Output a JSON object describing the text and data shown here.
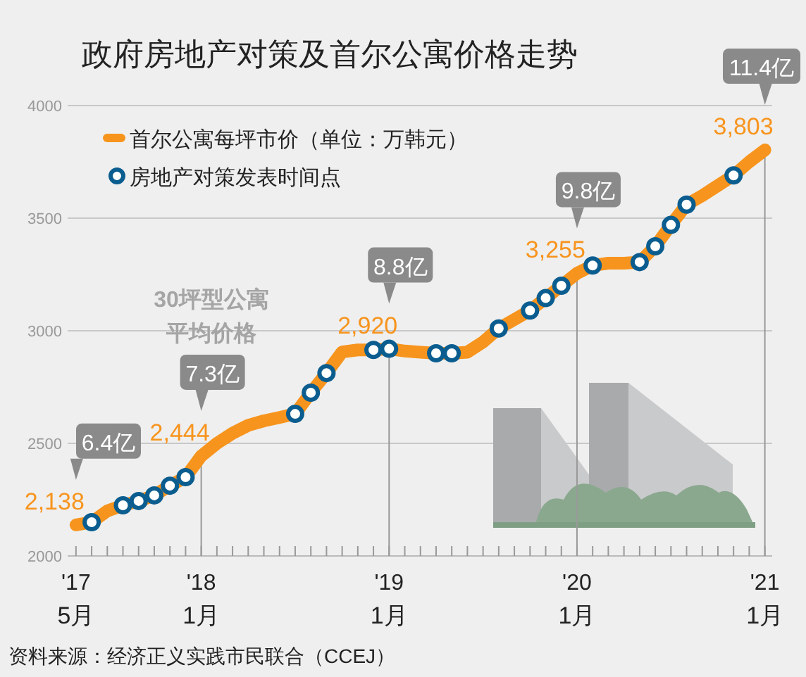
{
  "chart_data": {
    "type": "line",
    "title": "政府房地产对策及首尔公寓价格走势",
    "x": [
      "2017-05",
      "2017-06",
      "2017-07",
      "2017-08",
      "2017-09",
      "2017-10",
      "2017-11",
      "2017-12",
      "2018-01",
      "2018-02",
      "2018-03",
      "2018-04",
      "2018-05",
      "2018-06",
      "2018-07",
      "2018-08",
      "2018-09",
      "2018-10",
      "2018-11",
      "2018-12",
      "2019-01",
      "2019-02",
      "2019-03",
      "2019-04",
      "2019-05",
      "2019-06",
      "2019-07",
      "2019-08",
      "2019-09",
      "2019-10",
      "2019-11",
      "2019-12",
      "2020-01",
      "2020-02",
      "2020-03",
      "2020-04",
      "2020-05",
      "2020-06",
      "2020-07",
      "2020-08",
      "2020-09",
      "2020-10",
      "2020-11",
      "2020-12",
      "2021-01"
    ],
    "series": [
      {
        "name": "首尔公寓每坪市价（单位：万韩元）",
        "color": "#f7941d",
        "values": [
          2138,
          2150,
          2200,
          2225,
          2244,
          2269,
          2312,
          2350,
          2444,
          2500,
          2545,
          2580,
          2600,
          2615,
          2631,
          2725,
          2812,
          2906,
          2915,
          2915,
          2920,
          2910,
          2905,
          2900,
          2900,
          2905,
          2950,
          3010,
          3050,
          3090,
          3145,
          3200,
          3255,
          3290,
          3300,
          3300,
          3305,
          3375,
          3470,
          3560,
          3600,
          3645,
          3690,
          3750,
          3803
        ],
        "value_labels": [
          "2,138",
          null,
          null,
          null,
          null,
          null,
          null,
          null,
          "2,444",
          null,
          null,
          null,
          null,
          null,
          null,
          null,
          null,
          null,
          null,
          null,
          "2,920",
          null,
          null,
          null,
          null,
          null,
          null,
          null,
          null,
          null,
          null,
          null,
          "3,255",
          null,
          null,
          null,
          null,
          null,
          null,
          null,
          null,
          null,
          null,
          null,
          "3,803"
        ]
      },
      {
        "name": "房地产对策发表时间点",
        "type": "scatter",
        "color": "#0b5d8f",
        "marker": "circle",
        "x": [
          "2017-06",
          "2017-08",
          "2017-09",
          "2017-10",
          "2017-11",
          "2017-12",
          "2018-07",
          "2018-08",
          "2018-09",
          "2018-12",
          "2019-01",
          "2019-04",
          "2019-05",
          "2019-08",
          "2019-10",
          "2019-11",
          "2019-12",
          "2020-02",
          "2020-05",
          "2020-06",
          "2020-07",
          "2020-08",
          "2020-11"
        ],
        "values": [
          2150,
          2225,
          2244,
          2269,
          2312,
          2350,
          2631,
          2725,
          2812,
          2915,
          2920,
          2900,
          2900,
          3010,
          3090,
          3145,
          3200,
          3290,
          3305,
          3375,
          3470,
          3560,
          3690
        ]
      }
    ],
    "xlim": [
      "2017-04-15",
      "2021-01-15"
    ],
    "xticks": [
      {
        "value": "2017-05",
        "label": "'17\n5月"
      },
      {
        "value": "2017-06",
        "label": null
      },
      {
        "value": "2017-07",
        "label": null
      },
      {
        "value": "2017-08",
        "label": null
      },
      {
        "value": "2017-09",
        "label": null
      },
      {
        "value": "2017-10",
        "label": null
      },
      {
        "value": "2017-11",
        "label": null
      },
      {
        "value": "2017-12",
        "label": null
      },
      {
        "value": "2018-01",
        "label": "'18\n1月"
      },
      {
        "value": "2018-02",
        "label": null
      },
      {
        "value": "2018-03",
        "label": null
      },
      {
        "value": "2018-04",
        "label": null
      },
      {
        "value": "2018-05",
        "label": null
      },
      {
        "value": "2018-06",
        "label": null
      },
      {
        "value": "2018-07",
        "label": null
      },
      {
        "value": "2018-08",
        "label": null
      },
      {
        "value": "2018-09",
        "label": null
      },
      {
        "value": "2018-10",
        "label": null
      },
      {
        "value": "2018-11",
        "label": null
      },
      {
        "value": "2018-12",
        "label": null
      },
      {
        "value": "2019-01",
        "label": "'19\n1月"
      },
      {
        "value": "2019-02",
        "label": null
      },
      {
        "value": "2019-03",
        "label": null
      },
      {
        "value": "2019-04",
        "label": null
      },
      {
        "value": "2019-05",
        "label": null
      },
      {
        "value": "2019-06",
        "label": null
      },
      {
        "value": "2019-07",
        "label": null
      },
      {
        "value": "2019-08",
        "label": null
      },
      {
        "value": "2019-09",
        "label": null
      },
      {
        "value": "2019-10",
        "label": null
      },
      {
        "value": "2019-11",
        "label": null
      },
      {
        "value": "2019-12",
        "label": null
      },
      {
        "value": "2020-01",
        "label": "'20\n1月"
      },
      {
        "value": "2020-02",
        "label": null
      },
      {
        "value": "2020-03",
        "label": null
      },
      {
        "value": "2020-04",
        "label": null
      },
      {
        "value": "2020-05",
        "label": null
      },
      {
        "value": "2020-06",
        "label": null
      },
      {
        "value": "2020-07",
        "label": null
      },
      {
        "value": "2020-08",
        "label": null
      },
      {
        "value": "2020-09",
        "label": null
      },
      {
        "value": "2020-10",
        "label": null
      },
      {
        "value": "2020-11",
        "label": null
      },
      {
        "value": "2020-12",
        "label": null
      },
      {
        "value": "2021-01",
        "label": "'21\n1月"
      }
    ],
    "ylim": [
      2000,
      4000
    ],
    "yticks": [
      2000,
      2500,
      3000,
      3500,
      4000
    ],
    "grid": "y",
    "legend": "top left",
    "ref_lines": [
      {
        "axis": "x",
        "value": "2018-01",
        "color": "#999999"
      },
      {
        "axis": "x",
        "value": "2019-01",
        "color": "#999999"
      },
      {
        "axis": "x",
        "value": "2020-01",
        "color": "#999999"
      },
      {
        "axis": "x",
        "value": "2021-01",
        "color": "#999999"
      }
    ],
    "annotations": [
      "6.4亿",
      "7.3亿",
      "8.8亿",
      "9.8亿",
      "11.4亿",
      "30坪型公寓",
      "平均价格",
      "资料来源：经济正义实践市民联合（CCEJ）"
    ]
  }
}
